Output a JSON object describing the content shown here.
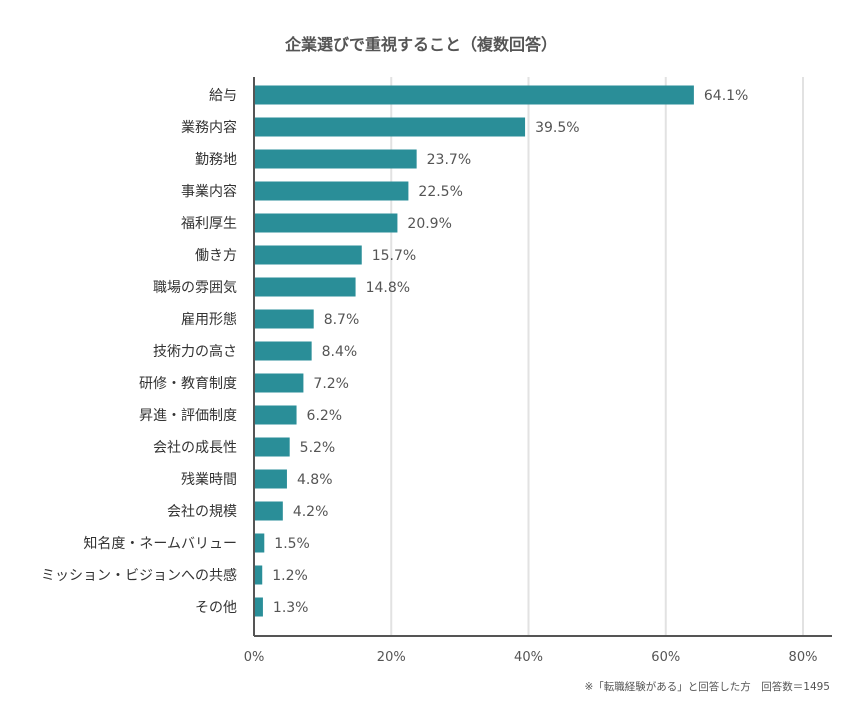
{
  "chart_data": {
    "type": "bar",
    "orientation": "horizontal",
    "title": "企業選びで重視すること（複数回答）",
    "categories": [
      "給与",
      "業務内容",
      "勤務地",
      "事業内容",
      "福利厚生",
      "働き方",
      "職場の雰囲気",
      "雇用形態",
      "技術力の高さ",
      "研修・教育制度",
      "昇進・評価制度",
      "会社の成長性",
      "残業時間",
      "会社の規模",
      "知名度・ネームバリュー",
      "ミッション・ビジョンへの共感",
      "その他"
    ],
    "values": [
      64.1,
      39.5,
      23.7,
      22.5,
      20.9,
      15.7,
      14.8,
      8.7,
      8.4,
      7.2,
      6.2,
      5.2,
      4.8,
      4.2,
      1.5,
      1.2,
      1.3
    ],
    "value_labels": [
      "64.1%",
      "39.5%",
      "23.7%",
      "22.5%",
      "20.9%",
      "15.7%",
      "14.8%",
      "8.7%",
      "8.4%",
      "7.2%",
      "6.2%",
      "5.2%",
      "4.8%",
      "4.2%",
      "1.5%",
      "1.2%",
      "1.3%"
    ],
    "xlim": [
      0,
      80
    ],
    "xticks": [
      0,
      20,
      40,
      60,
      80
    ],
    "xtick_labels": [
      "0%",
      "20%",
      "40%",
      "60%",
      "80%"
    ],
    "grid": true,
    "bar_color": "#2a8e98",
    "note": "※「転職経験がある」と回答した方　回答数＝1495"
  }
}
